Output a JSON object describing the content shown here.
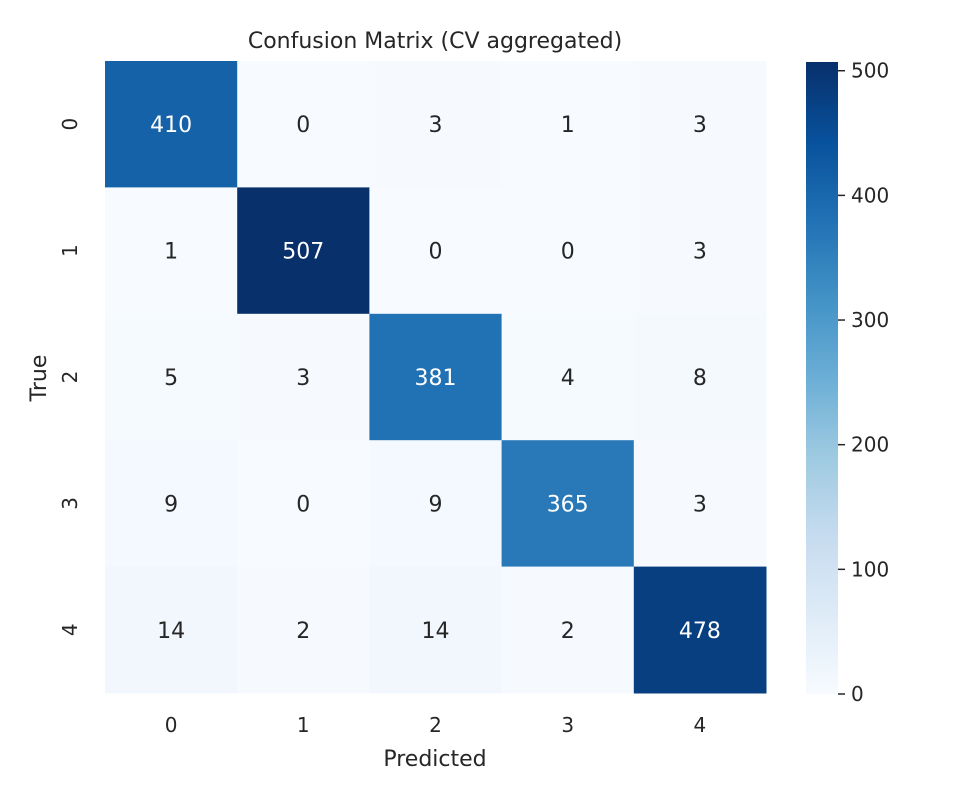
{
  "chart_data": {
    "type": "heatmap",
    "title": "Confusion Matrix (CV aggregated)",
    "xlabel": "Predicted",
    "ylabel": "True",
    "x_categories": [
      "0",
      "1",
      "2",
      "3",
      "4"
    ],
    "y_categories": [
      "0",
      "1",
      "2",
      "3",
      "4"
    ],
    "values": [
      [
        410,
        0,
        3,
        1,
        3
      ],
      [
        1,
        507,
        0,
        0,
        3
      ],
      [
        5,
        3,
        381,
        4,
        8
      ],
      [
        9,
        0,
        9,
        365,
        3
      ],
      [
        14,
        2,
        14,
        2,
        478
      ]
    ],
    "colormap": "Blues",
    "color_range": [
      0,
      507
    ],
    "colorbar": {
      "ticks": [
        0,
        100,
        200,
        300,
        400,
        500
      ],
      "tick_labels": [
        "0",
        "100",
        "200",
        "300",
        "400",
        "500"
      ]
    },
    "grid": false,
    "colors": {
      "low": "#f7fbff",
      "high": "#08306b",
      "text_dark": "#262626",
      "text_light": "#ffffff"
    }
  }
}
